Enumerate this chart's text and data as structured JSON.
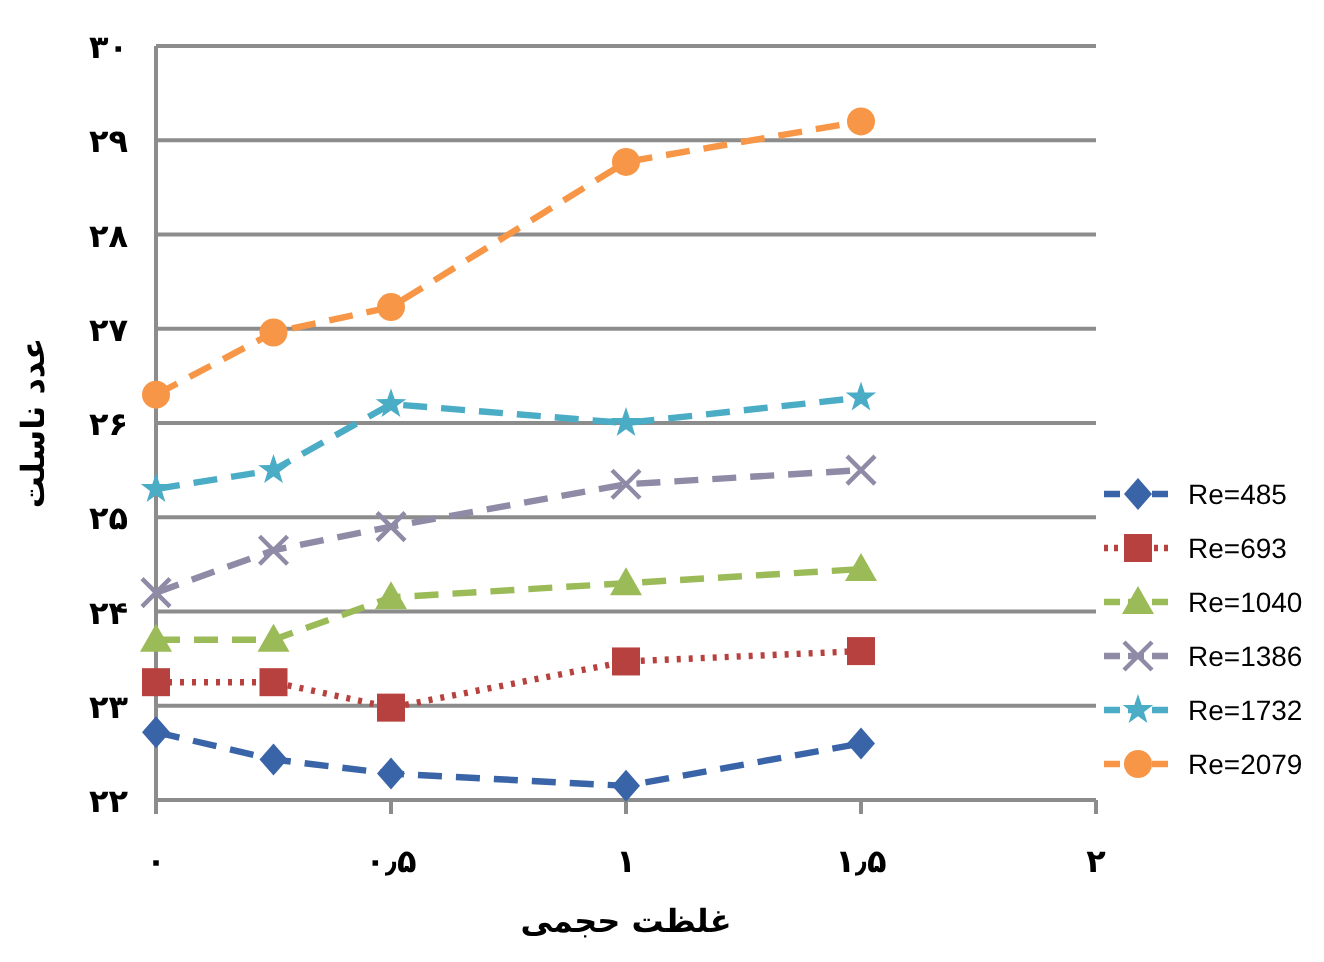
{
  "chart_data": {
    "type": "line",
    "xlabel": "غلظت حجمی",
    "ylabel": "عدد ناسلت",
    "xlim": [
      0,
      2
    ],
    "ylim": [
      22,
      30
    ],
    "xticks": [
      {
        "value": 0,
        "label": "۰"
      },
      {
        "value": 0.5,
        "label": "۰٫۵"
      },
      {
        "value": 1,
        "label": "۱"
      },
      {
        "value": 1.5,
        "label": "۱٫۵"
      },
      {
        "value": 2,
        "label": "۲"
      }
    ],
    "yticks": [
      {
        "value": 22,
        "label": "۲۲"
      },
      {
        "value": 23,
        "label": "۲۳"
      },
      {
        "value": 24,
        "label": "۲۴"
      },
      {
        "value": 25,
        "label": "۲۵"
      },
      {
        "value": 26,
        "label": "۲۶"
      },
      {
        "value": 27,
        "label": "۲۷"
      },
      {
        "value": 28,
        "label": "۲۸"
      },
      {
        "value": 29,
        "label": "۲۹"
      },
      {
        "value": 30,
        "label": "۳۰"
      }
    ],
    "x": [
      0,
      0.25,
      0.5,
      1,
      1.5
    ],
    "grid": "y",
    "legend": "right",
    "series": [
      {
        "name": "Re=485",
        "color": "#3a64a8",
        "marker": "diamond",
        "line_style": "dashed",
        "values": [
          22.72,
          22.43,
          22.28,
          22.15,
          22.6
        ]
      },
      {
        "name": "Re=693",
        "color": "#b7413e",
        "marker": "square",
        "line_style": "dotted",
        "values": [
          23.25,
          23.25,
          22.98,
          23.47,
          23.58
        ]
      },
      {
        "name": "Re=1040",
        "color": "#9bbb59",
        "marker": "triangle",
        "line_style": "dashed",
        "values": [
          23.7,
          23.7,
          24.15,
          24.3,
          24.45
        ]
      },
      {
        "name": "Re=1386",
        "color": "#8f8aa6",
        "marker": "cross",
        "line_style": "dashed",
        "values": [
          24.2,
          24.65,
          24.9,
          25.35,
          25.5
        ]
      },
      {
        "name": "Re=1732",
        "color": "#4bacc6",
        "marker": "star",
        "line_style": "dashed",
        "values": [
          25.3,
          25.5,
          26.2,
          26.0,
          26.27
        ]
      },
      {
        "name": "Re=2079",
        "color": "#f79646",
        "marker": "circle",
        "line_style": "dashed",
        "values": [
          26.3,
          26.96,
          27.23,
          28.77,
          29.2
        ]
      }
    ]
  }
}
